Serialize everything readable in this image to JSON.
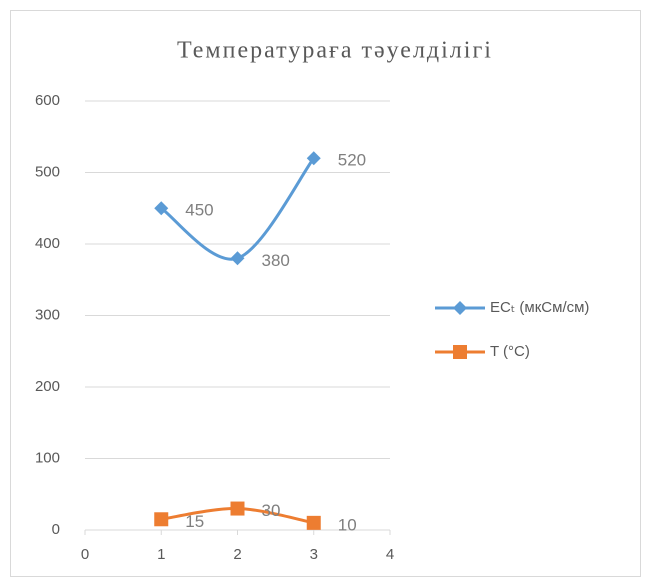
{
  "chart_data": {
    "type": "scatter",
    "title": "Температураға тәуелділігі",
    "x": [
      1,
      2,
      3
    ],
    "series": [
      {
        "name": "ECₜ (мкСм/см)",
        "color": "#5b9bd5",
        "marker": "diamond",
        "values": [
          450,
          380,
          520
        ]
      },
      {
        "name": "T (°C)",
        "color": "#ed7d31",
        "marker": "square",
        "values": [
          15,
          30,
          10
        ]
      }
    ],
    "xlim": [
      0,
      4
    ],
    "xticks": [
      0,
      1,
      2,
      3,
      4
    ],
    "ylim": [
      0,
      600
    ],
    "yticks": [
      0,
      100,
      200,
      300,
      400,
      500,
      600
    ],
    "grid": true,
    "smooth": true,
    "legend": "right"
  }
}
